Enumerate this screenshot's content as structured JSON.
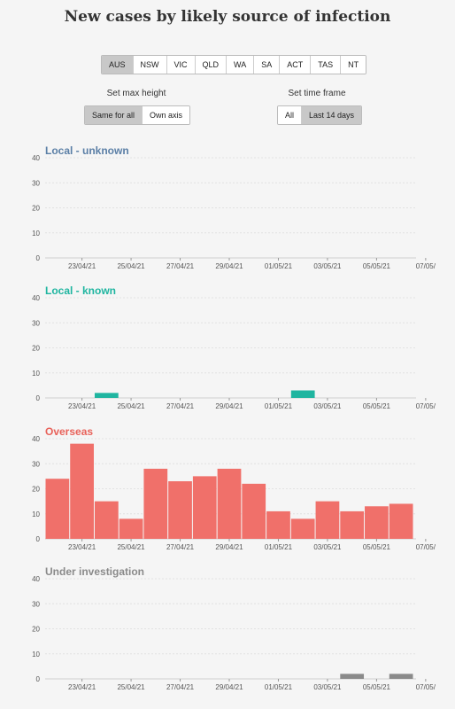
{
  "header": {
    "title": "New cases by likely source of infection"
  },
  "regions": {
    "items": [
      "AUS",
      "NSW",
      "VIC",
      "QLD",
      "WA",
      "SA",
      "ACT",
      "TAS",
      "NT"
    ],
    "active": "AUS"
  },
  "controls": {
    "height_label": "Set max height",
    "height_options": [
      "Same for all",
      "Own axis"
    ],
    "height_active": "Same for all",
    "time_label": "Set time frame",
    "time_options": [
      "All",
      "Last 14 days"
    ],
    "time_active": "Last 14 days"
  },
  "chart_data": [
    {
      "type": "bar",
      "title": "Local - unknown",
      "color": "#5b7fa6",
      "bar_color": "#5b7fa6",
      "ylim": [
        0,
        40
      ],
      "yticks": [
        0,
        10,
        20,
        30,
        40
      ],
      "xticks": [
        "23/04/21",
        "25/04/21",
        "27/04/21",
        "29/04/21",
        "01/05/21",
        "03/05/21",
        "05/05/21",
        "07/05/"
      ],
      "categories": [
        "22/04/21",
        "23/04/21",
        "24/04/21",
        "25/04/21",
        "26/04/21",
        "27/04/21",
        "28/04/21",
        "29/04/21",
        "30/04/21",
        "01/05/21",
        "02/05/21",
        "03/05/21",
        "04/05/21",
        "05/05/21",
        "06/05/21"
      ],
      "values": [
        0,
        0,
        0,
        0,
        0,
        0,
        0,
        0,
        0,
        0,
        0,
        0,
        0,
        0,
        0
      ]
    },
    {
      "type": "bar",
      "title": "Local - known",
      "color": "#1fb5a0",
      "bar_color": "#1fb5a0",
      "ylim": [
        0,
        40
      ],
      "yticks": [
        0,
        10,
        20,
        30,
        40
      ],
      "xticks": [
        "23/04/21",
        "25/04/21",
        "27/04/21",
        "29/04/21",
        "01/05/21",
        "03/05/21",
        "05/05/21",
        "07/05/"
      ],
      "categories": [
        "22/04/21",
        "23/04/21",
        "24/04/21",
        "25/04/21",
        "26/04/21",
        "27/04/21",
        "28/04/21",
        "29/04/21",
        "30/04/21",
        "01/05/21",
        "02/05/21",
        "03/05/21",
        "04/05/21",
        "05/05/21",
        "06/05/21"
      ],
      "values": [
        0,
        0,
        2,
        0,
        0,
        0,
        0,
        0,
        0,
        0,
        3,
        0,
        0,
        0,
        0
      ]
    },
    {
      "type": "bar",
      "title": "Overseas",
      "color": "#e8625a",
      "bar_color": "#f0706a",
      "ylim": [
        0,
        40
      ],
      "yticks": [
        0,
        10,
        20,
        30,
        40
      ],
      "xticks": [
        "23/04/21",
        "25/04/21",
        "27/04/21",
        "29/04/21",
        "01/05/21",
        "03/05/21",
        "05/05/21",
        "07/05/"
      ],
      "categories": [
        "22/04/21",
        "23/04/21",
        "24/04/21",
        "25/04/21",
        "26/04/21",
        "27/04/21",
        "28/04/21",
        "29/04/21",
        "30/04/21",
        "01/05/21",
        "02/05/21",
        "03/05/21",
        "04/05/21",
        "05/05/21",
        "06/05/21"
      ],
      "values": [
        24,
        38,
        15,
        8,
        28,
        23,
        25,
        28,
        22,
        11,
        8,
        15,
        11,
        13,
        14
      ]
    },
    {
      "type": "bar",
      "title": "Under investigation",
      "color": "#8a8a8a",
      "bar_color": "#8a8a8a",
      "ylim": [
        0,
        40
      ],
      "yticks": [
        0,
        10,
        20,
        30,
        40
      ],
      "xticks": [
        "23/04/21",
        "25/04/21",
        "27/04/21",
        "29/04/21",
        "01/05/21",
        "03/05/21",
        "05/05/21",
        "07/05/"
      ],
      "categories": [
        "22/04/21",
        "23/04/21",
        "24/04/21",
        "25/04/21",
        "26/04/21",
        "27/04/21",
        "28/04/21",
        "29/04/21",
        "30/04/21",
        "01/05/21",
        "02/05/21",
        "03/05/21",
        "04/05/21",
        "05/05/21",
        "06/05/21"
      ],
      "values": [
        0,
        0,
        0,
        0,
        0,
        0,
        0,
        0,
        0,
        0,
        0,
        0,
        2,
        0,
        2
      ]
    }
  ]
}
